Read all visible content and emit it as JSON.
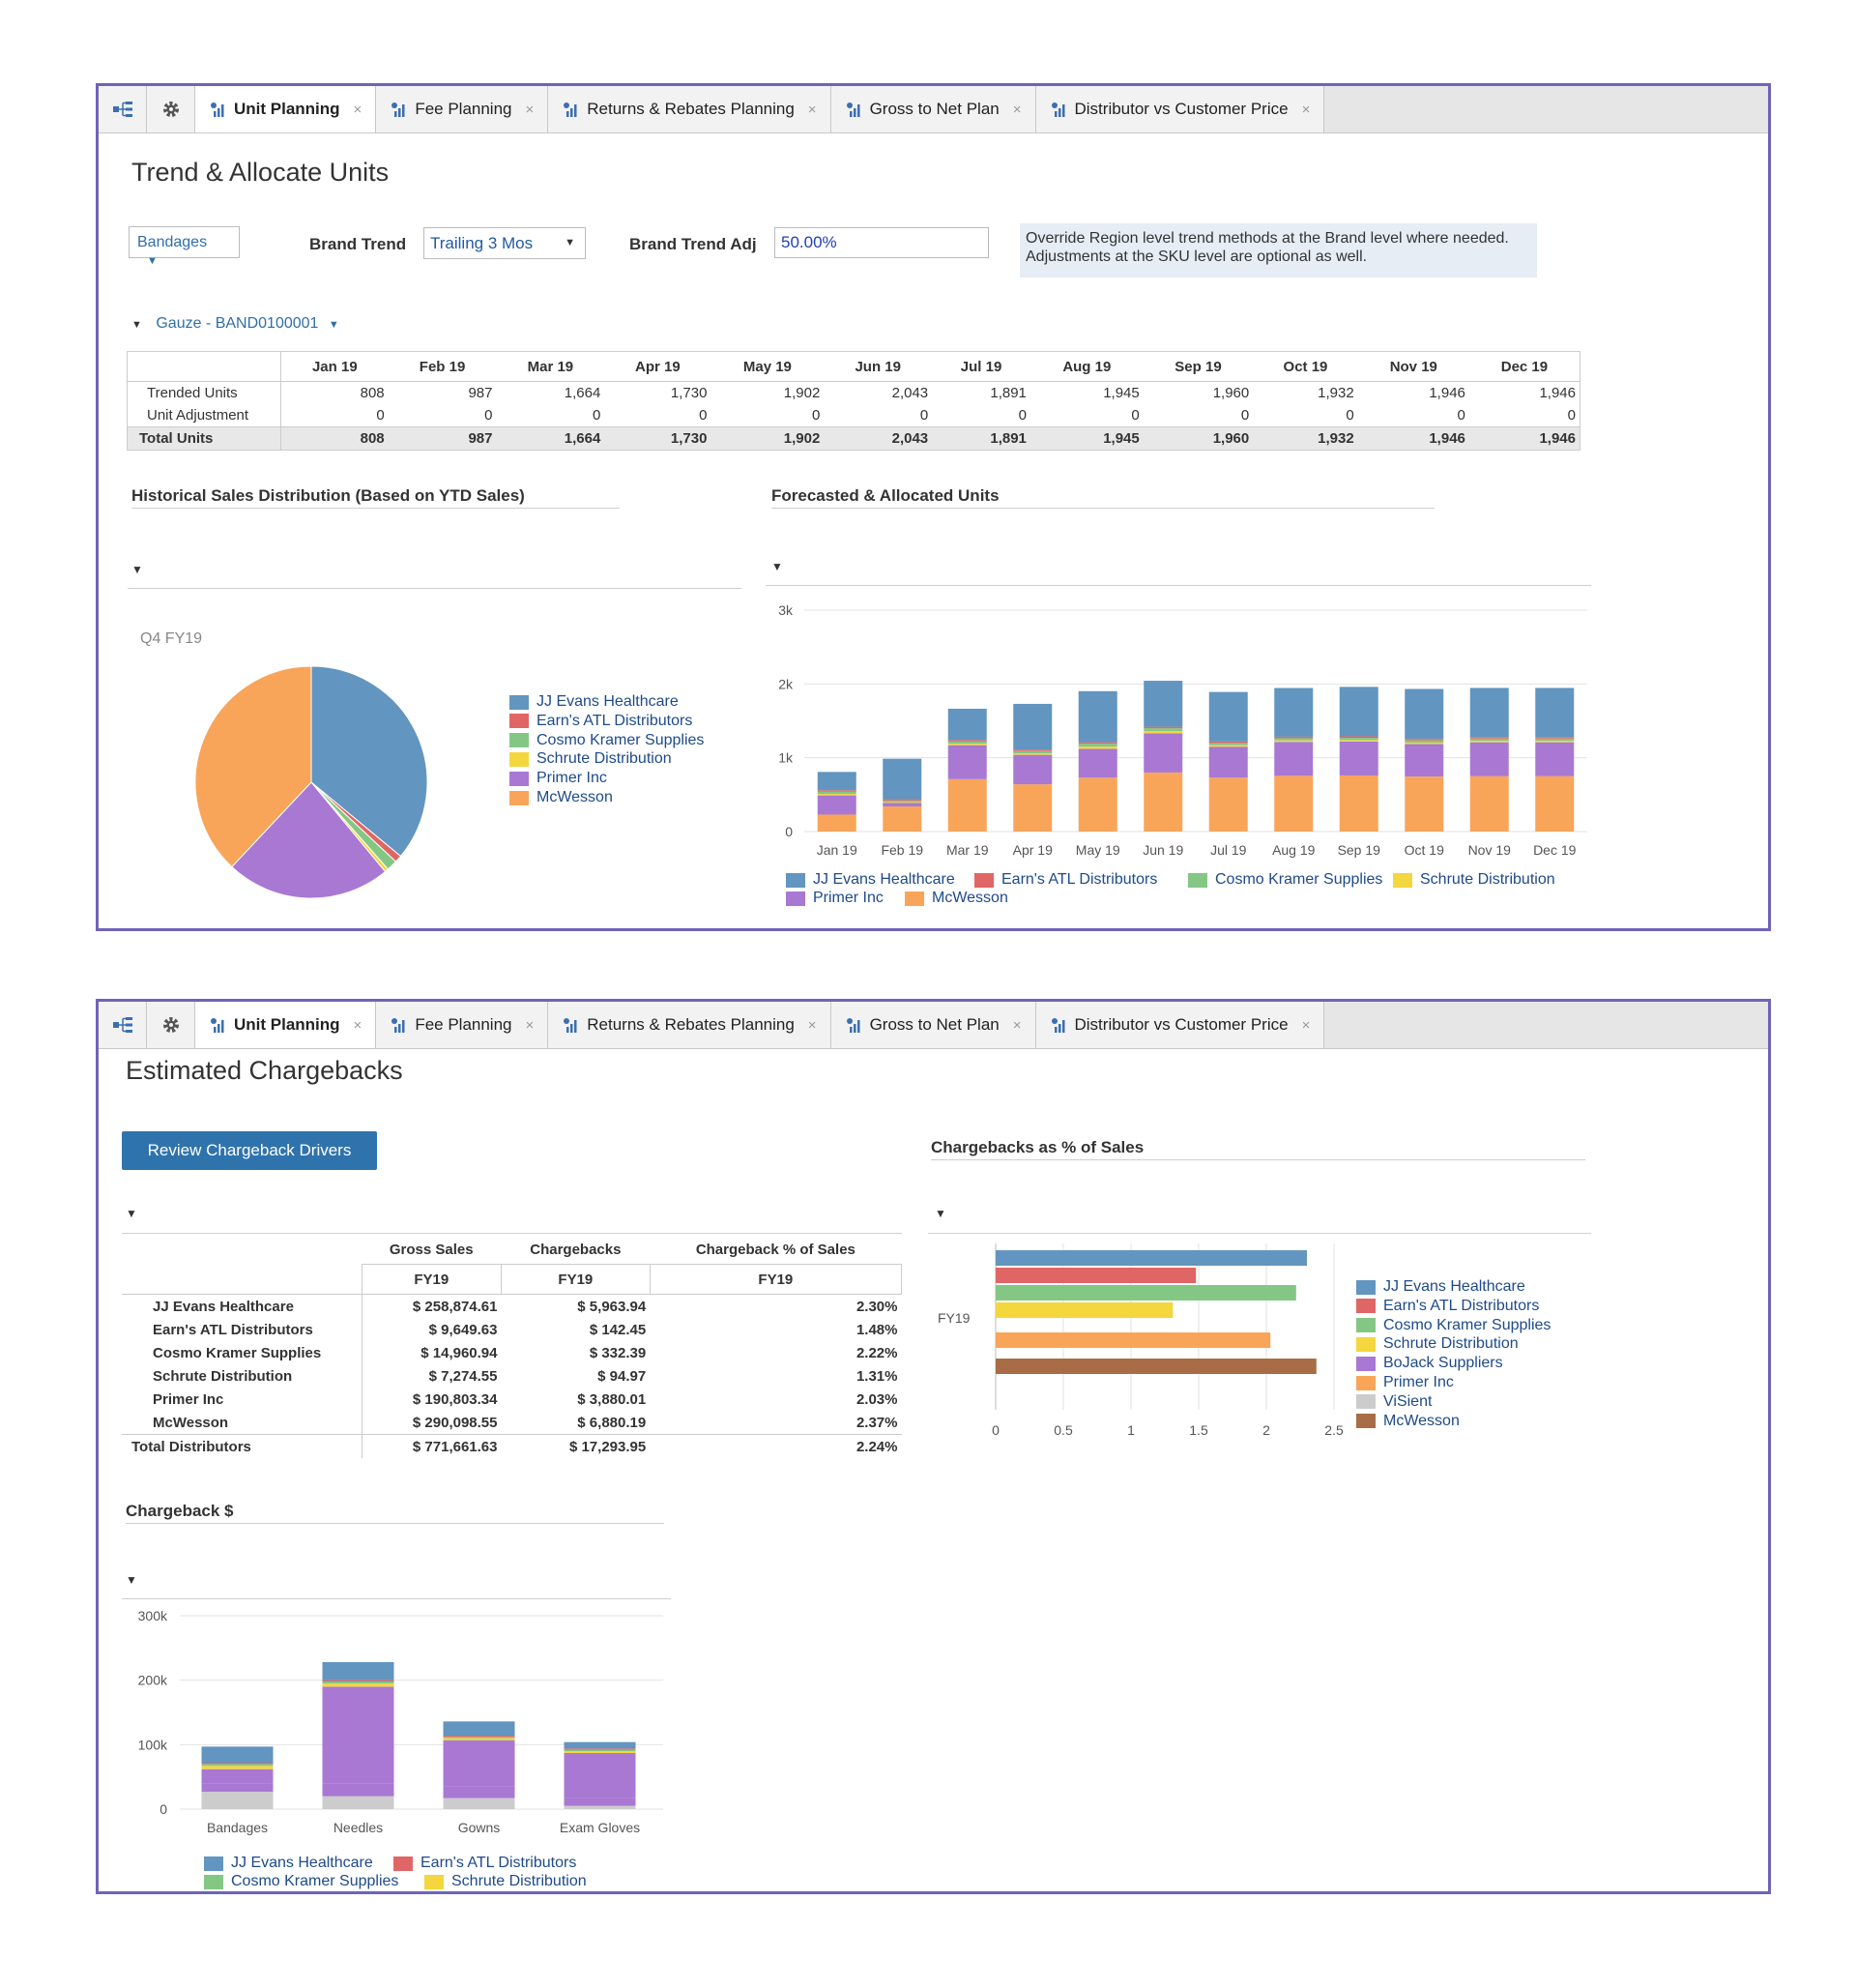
{
  "tabs": [
    {
      "label": "Unit Planning",
      "active": true
    },
    {
      "label": "Fee Planning",
      "active": false
    },
    {
      "label": "Returns & Rebates Planning",
      "active": false
    },
    {
      "label": "Gross to Net Plan",
      "active": false
    },
    {
      "label": "Distributor vs Customer Price",
      "active": false
    }
  ],
  "tab_close": "×",
  "icons": {
    "tree": "tree-hierarchy-icon",
    "gear": "gear-icon",
    "tab": "report-chart-icon",
    "close": "close-icon",
    "caret": "caret-down-icon"
  },
  "colors": {
    "accent": "#2f73ad",
    "jj": "#6295bf",
    "earns": "#e06666",
    "cosmo": "#84c784",
    "schrute": "#f4d63e",
    "primer": "#a878d3",
    "mcwesson": "#f8a55a",
    "bojack": "#a878d3",
    "visient": "#cccccc",
    "mcwesson_brown": "#a86d46"
  },
  "panel1": {
    "title": "Trend & Allocate Units",
    "product_dropdown": "Bandages",
    "brand_trend_label": "Brand Trend",
    "brand_trend_value": "Trailing 3 Mos",
    "brand_trend_adj_label": "Brand Trend Adj",
    "brand_trend_adj_value": "50.00%",
    "note_line1": "Override Region level trend methods at the Brand level where needed.",
    "note_line2": "Adjustments at the SKU level are optional as well.",
    "sku_selector": "Gauze - BAND0100001",
    "units_table": {
      "months": [
        "Jan 19",
        "Feb 19",
        "Mar 19",
        "Apr 19",
        "May 19",
        "Jun 19",
        "Jul 19",
        "Aug 19",
        "Sep 19",
        "Oct 19",
        "Nov 19",
        "Dec 19"
      ],
      "rows": [
        {
          "label": "Trended Units",
          "values": [
            "808",
            "987",
            "1,664",
            "1,730",
            "1,902",
            "2,043",
            "1,891",
            "1,945",
            "1,960",
            "1,932",
            "1,946",
            "1,946"
          ]
        },
        {
          "label": "Unit Adjustment",
          "values": [
            "0",
            "0",
            "0",
            "0",
            "0",
            "0",
            "0",
            "0",
            "0",
            "0",
            "0",
            "0"
          ]
        },
        {
          "label": "Total Units",
          "values": [
            "808",
            "987",
            "1,664",
            "1,730",
            "1,902",
            "2,043",
            "1,891",
            "1,945",
            "1,960",
            "1,932",
            "1,946",
            "1,946"
          ]
        }
      ]
    },
    "hist_title": "Historical Sales Distribution (Based on YTD Sales)",
    "pie_period": "Q4 FY19",
    "forecast_title": "Forecasted & Allocated Units"
  },
  "panel2": {
    "title": "Estimated Chargebacks",
    "review_button": "Review Chargeback Drivers",
    "cb_table": {
      "headers": [
        "Gross Sales",
        "Chargebacks",
        "Chargeback % of Sales"
      ],
      "subheaders": [
        "FY19",
        "FY19",
        "FY19"
      ],
      "rows": [
        {
          "label": "JJ Evans Healthcare",
          "gross": "$ 258,874.61",
          "cb": "$ 5,963.94",
          "pct": "2.30%"
        },
        {
          "label": "Earn's ATL Distributors",
          "gross": "$ 9,649.63",
          "cb": "$ 142.45",
          "pct": "1.48%"
        },
        {
          "label": "Cosmo Kramer Supplies",
          "gross": "$ 14,960.94",
          "cb": "$ 332.39",
          "pct": "2.22%"
        },
        {
          "label": "Schrute Distribution",
          "gross": "$ 7,274.55",
          "cb": "$ 94.97",
          "pct": "1.31%"
        },
        {
          "label": "Primer Inc",
          "gross": "$ 190,803.34",
          "cb": "$ 3,880.01",
          "pct": "2.03%"
        },
        {
          "label": "McWesson",
          "gross": "$ 290,098.55",
          "cb": "$ 6,880.19",
          "pct": "2.37%"
        }
      ],
      "total": {
        "label": "Total Distributors",
        "gross": "$ 771,661.63",
        "cb": "$ 17,293.95",
        "pct": "2.24%"
      }
    },
    "pct_title": "Chargebacks as % of Sales",
    "cbd_title": "Chargeback $"
  },
  "chart_data": [
    {
      "type": "pie",
      "labels": [
        "JJ Evans Healthcare",
        "Earn's ATL Distributors",
        "Cosmo Kramer Supplies",
        "Schrute Distribution",
        "Primer Inc",
        "McWesson"
      ],
      "values": [
        36,
        1,
        1.5,
        0.5,
        23,
        38
      ],
      "title": "Q4 FY19",
      "legend": "right"
    },
    {
      "type": "bar",
      "stacked": true,
      "categories": [
        "Jan 19",
        "Feb 19",
        "Mar 19",
        "Apr 19",
        "May 19",
        "Jun 19",
        "Jul 19",
        "Aug 19",
        "Sep 19",
        "Oct 19",
        "Nov 19",
        "Dec 19"
      ],
      "series": [
        {
          "name": "McWesson",
          "values": [
            230,
            340,
            710,
            640,
            730,
            800,
            730,
            755,
            760,
            745,
            750,
            750
          ]
        },
        {
          "name": "Primer Inc",
          "values": [
            260,
            50,
            460,
            400,
            390,
            530,
            420,
            460,
            460,
            440,
            460,
            460
          ]
        },
        {
          "name": "Schrute Distribution",
          "values": [
            20,
            10,
            20,
            20,
            30,
            30,
            20,
            20,
            20,
            20,
            20,
            20
          ]
        },
        {
          "name": "Cosmo Kramer Supplies",
          "values": [
            30,
            20,
            30,
            30,
            40,
            40,
            30,
            30,
            30,
            30,
            30,
            30
          ]
        },
        {
          "name": "Earn's ATL Distributors",
          "values": [
            20,
            20,
            20,
            20,
            20,
            20,
            20,
            20,
            20,
            20,
            20,
            20
          ]
        },
        {
          "name": "JJ Evans Healthcare",
          "values": [
            248,
            547,
            424,
            620,
            692,
            623,
            671,
            660,
            670,
            677,
            666,
            666
          ]
        }
      ],
      "yticks": [
        "0",
        "1k",
        "2k",
        "3k"
      ],
      "ylim": [
        0,
        3000
      ],
      "legend_order": [
        "JJ Evans Healthcare",
        "Earn's ATL Distributors",
        "Cosmo Kramer Supplies",
        "Schrute Distribution",
        "Primer Inc",
        "McWesson"
      ],
      "legend": "bottom"
    },
    {
      "type": "bar",
      "orientation": "horizontal",
      "categories": [
        "FY19"
      ],
      "series": [
        {
          "name": "JJ Evans Healthcare",
          "values": [
            2.3
          ]
        },
        {
          "name": "Earn's ATL Distributors",
          "values": [
            1.48
          ]
        },
        {
          "name": "Cosmo Kramer Supplies",
          "values": [
            2.22
          ]
        },
        {
          "name": "Schrute Distribution",
          "values": [
            1.31
          ]
        },
        {
          "name": "Primer Inc",
          "values": [
            2.03
          ]
        },
        {
          "name": "McWesson",
          "values": [
            2.37
          ]
        }
      ],
      "xticks": [
        "0",
        "0.5",
        "1",
        "1.5",
        "2",
        "2.5"
      ],
      "xlim": [
        0,
        2.5
      ],
      "legend_names": [
        "JJ Evans Healthcare",
        "Earn's ATL Distributors",
        "Cosmo Kramer Supplies",
        "Schrute Distribution",
        "BoJack Suppliers",
        "Primer Inc",
        "ViSient",
        "McWesson"
      ],
      "legend": "right"
    },
    {
      "type": "bar",
      "stacked": true,
      "categories": [
        "Bandages",
        "Needles",
        "Gowns",
        "Exam Gloves"
      ],
      "series": [
        {
          "name": "ViSient",
          "values": [
            27000,
            20000,
            17000,
            5000
          ]
        },
        {
          "name": "Primer Inc",
          "values": [
            13000,
            20000,
            18000,
            12000
          ]
        },
        {
          "name": "BoJack Suppliers",
          "values": [
            22000,
            150000,
            72000,
            70000
          ]
        },
        {
          "name": "Schrute Distribution",
          "values": [
            5000,
            5000,
            3000,
            3000
          ]
        },
        {
          "name": "Cosmo Kramer Supplies",
          "values": [
            3000,
            3000,
            2000,
            2000
          ]
        },
        {
          "name": "Earn's ATL Distributors",
          "values": [
            2000,
            2000,
            2000,
            2000
          ]
        },
        {
          "name": "JJ Evans Healthcare",
          "values": [
            25000,
            28000,
            22000,
            10000
          ]
        }
      ],
      "yticks": [
        "0",
        "100k",
        "200k",
        "300k"
      ],
      "ylim": [
        0,
        300000
      ],
      "legend_names": [
        "JJ Evans Healthcare",
        "Earn's ATL Distributors",
        "Cosmo Kramer Supplies",
        "Schrute Distribution"
      ],
      "legend": "bottom"
    }
  ]
}
